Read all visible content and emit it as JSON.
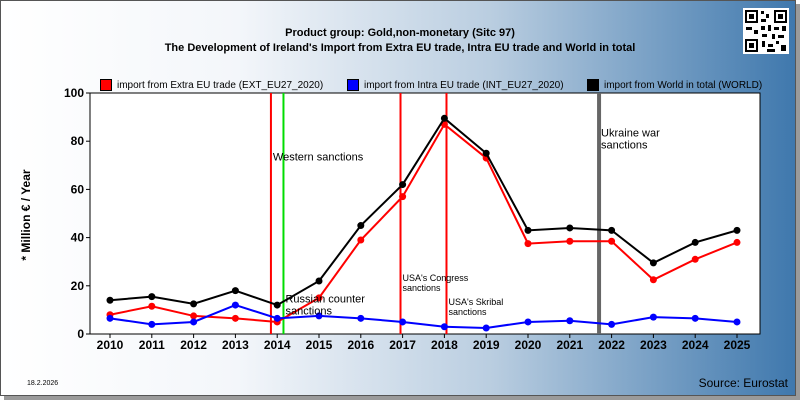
{
  "title_line1": "Product group: Gold,non-monetary (Sitc 97)",
  "title_line2": "The Development of Ireland's Import from Extra EU trade, Intra EU trade and World in total",
  "ylabel": "* Million € / Year",
  "date": "18.2.2026",
  "source": "Source: Eurostat",
  "qr_icon": "qr-code-icon",
  "chart_data": {
    "type": "line",
    "x": [
      "2010",
      "2011",
      "2012",
      "2013",
      "2014",
      "2015",
      "2016",
      "2017",
      "2018",
      "2019",
      "2020",
      "2021",
      "2022",
      "2023",
      "2024",
      "2025"
    ],
    "ylim": [
      0,
      100
    ],
    "yticks": [
      0,
      20,
      40,
      60,
      80,
      100
    ],
    "grid": false,
    "legend_position": "top",
    "series": [
      {
        "name": "import from Extra EU trade (EXT_EU27_2020)",
        "color": "#ff0000",
        "values": [
          8,
          11.5,
          7.5,
          6.5,
          5,
          15,
          39,
          57,
          87,
          73,
          37.5,
          38.5,
          38.5,
          22.5,
          31,
          38
        ]
      },
      {
        "name": "import from Intra EU trade (INT_EU27_2020)",
        "color": "#0000ff",
        "values": [
          6.5,
          4,
          5,
          12,
          6.5,
          7.5,
          6.5,
          5,
          3,
          2.5,
          5,
          5.5,
          4,
          7,
          6.5,
          5
        ]
      },
      {
        "name": "import from World in total (WORLD)",
        "color": "#000000",
        "values": [
          14,
          15.5,
          12.5,
          18,
          12,
          22,
          45,
          62,
          89.5,
          75,
          43,
          44,
          43,
          29.5,
          38,
          43
        ]
      }
    ],
    "annotations": [
      {
        "label": "Western sanctions",
        "x": 2013.85,
        "color": "#ff0000",
        "text_y": 72
      },
      {
        "label": "",
        "x": 2014.15,
        "color": "#00dd00"
      },
      {
        "label": "Russian counter sanctions",
        "x": 2014.15,
        "color": "#00dd00",
        "text_y": 13
      },
      {
        "label": "USA's Congress sanctions",
        "x": 2016.95,
        "color": "#ff0000",
        "text_y": 22
      },
      {
        "label": "USA's Skribal sanctions",
        "x": 2018.05,
        "color": "#ff0000",
        "text_y": 12
      },
      {
        "label": "Ukraine war sanctions",
        "x": 2021.7,
        "color": "#666666",
        "text_y": 82
      }
    ]
  }
}
